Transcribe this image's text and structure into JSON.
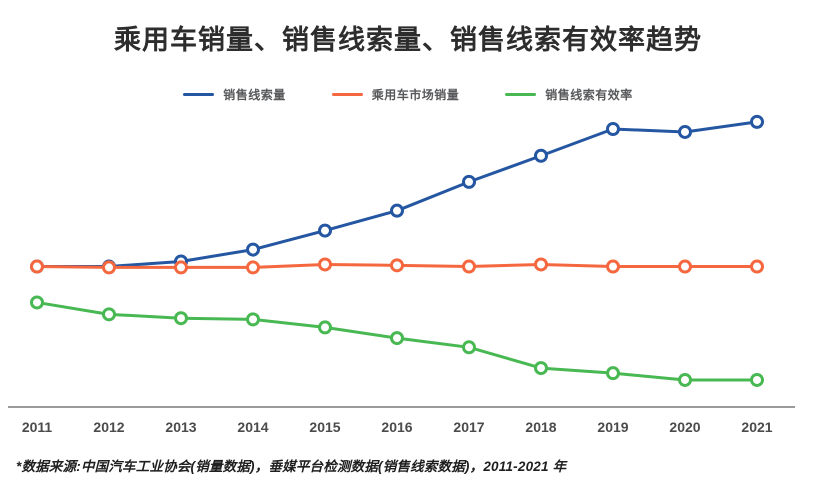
{
  "title": "乘用车销量、销售线索量、销售线索有效率趋势",
  "footer": "*数据来源:中国汽车工业协会(销量数据)，垂媒平台检测数据(销售线索数据)，2011-2021 年",
  "colors": {
    "blue": "#2456a2",
    "orange": "#f5683f",
    "green": "#48b852",
    "axis": "#9a9a9a",
    "tick_label": "#4b4b4b",
    "legend_text": "#58595b",
    "title_text": "#2d2d2d",
    "marker_fill": "#ffffff"
  },
  "chart_data": {
    "type": "line",
    "title": "乘用车销量、销售线索量、销售线索有效率趋势",
    "xlabel": "",
    "ylabel": "",
    "categories": [
      "2011",
      "2012",
      "2013",
      "2014",
      "2015",
      "2016",
      "2017",
      "2018",
      "2019",
      "2020",
      "2021"
    ],
    "series": [
      {
        "name": "销售线索量",
        "color": "#2456a2",
        "values": [
          47.3,
          47.3,
          49.0,
          53.0,
          59.4,
          66.1,
          75.8,
          84.6,
          93.6,
          92.6,
          96.0
        ]
      },
      {
        "name": "乘用车市场销量",
        "color": "#f5683f",
        "values": [
          47.3,
          47.0,
          47.0,
          47.0,
          48.0,
          47.7,
          47.3,
          48.0,
          47.3,
          47.3,
          47.3
        ]
      },
      {
        "name": "销售线索有效率",
        "color": "#48b852",
        "values": [
          35.2,
          31.2,
          29.9,
          29.5,
          26.8,
          23.2,
          20.1,
          13.1,
          11.4,
          9.1,
          9.1
        ]
      }
    ],
    "ylim": [
      0,
      100
    ],
    "y_axis_visible": false,
    "grid": false,
    "legend_position": "top",
    "marker": "open-circle",
    "value_note": "no y-axis labels in source image; values are relative 0-100 positions estimated from pixels"
  }
}
